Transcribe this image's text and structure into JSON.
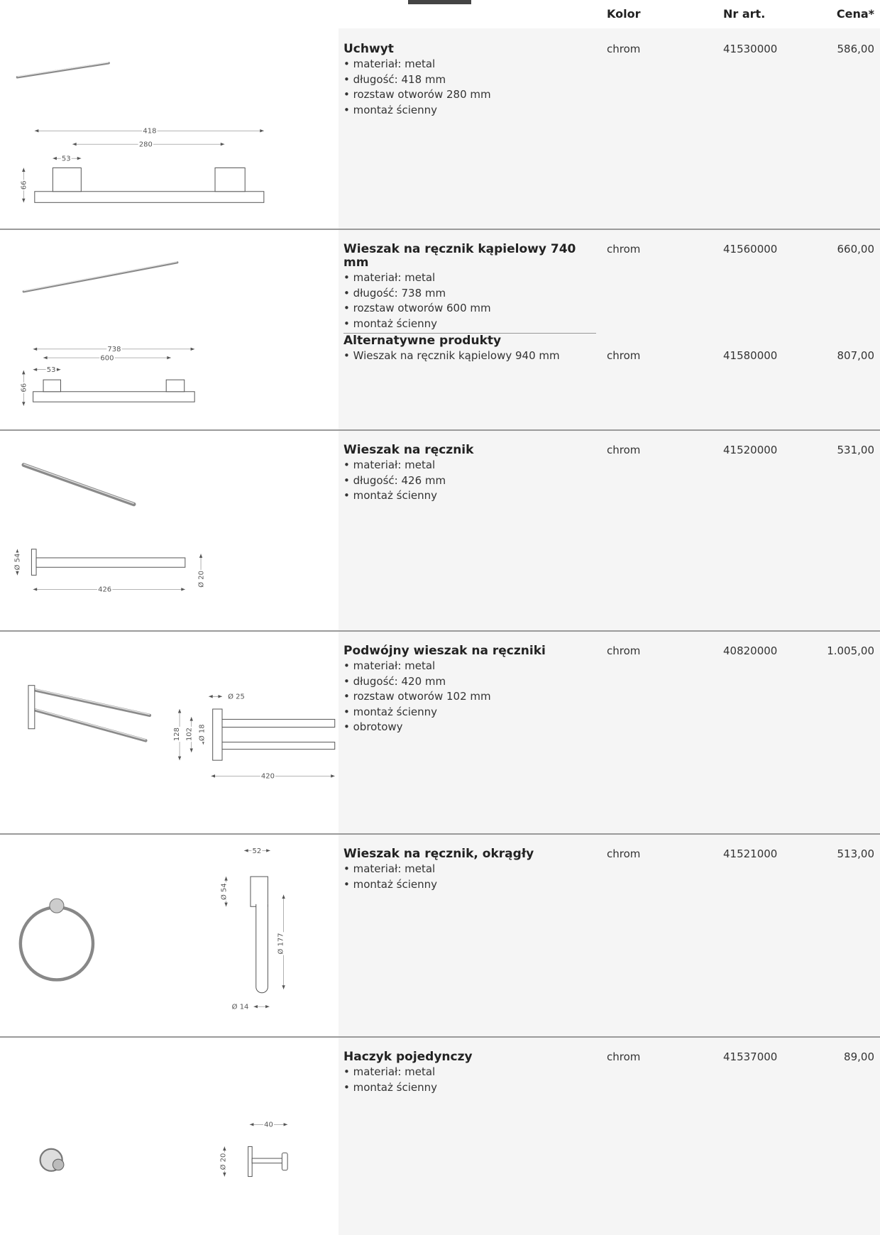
{
  "header": {
    "columns": [
      "Kolor",
      "Nr art.",
      "Cena*"
    ]
  },
  "products": [
    {
      "name": "Uchwyt",
      "features": [
        "• materiał: metal",
        "• długość: 418 mm",
        "• rozstaw otworów 280 mm",
        "• montaż ścienny"
      ],
      "color": "chrom",
      "article": "41530000",
      "price": "586,00",
      "dims": [
        "418",
        "280",
        "53",
        "66"
      ]
    },
    {
      "name": "Wieszak na ręcznik kąpielowy 740 mm",
      "features": [
        "• materiał: metal",
        "• długość: 738 mm",
        "• rozstaw otworów 600 mm",
        "• montaż ścienny"
      ],
      "color": "chrom",
      "article": "41560000",
      "price": "660,00",
      "dims": [
        "738",
        "600",
        "53",
        "66"
      ],
      "alternatives": {
        "title": "Alternatywne produkty",
        "items": [
          {
            "name": "• Wieszak na ręcznik kąpielowy 940 mm",
            "color": "chrom",
            "article": "41580000",
            "price": "807,00"
          }
        ]
      }
    },
    {
      "name": "Wieszak na ręcznik",
      "features": [
        "• materiał: metal",
        "• długość: 426 mm",
        "• montaż ścienny"
      ],
      "color": "chrom",
      "article": "41520000",
      "price": "531,00",
      "dims": [
        "Ø 54",
        "426",
        "Ø 20"
      ]
    },
    {
      "name": "Podwójny wieszak na ręczniki",
      "features": [
        "• materiał: metal",
        "• długość: 420 mm",
        "• rozstaw otworów 102 mm",
        "• montaż ścienny",
        "• obrotowy"
      ],
      "color": "chrom",
      "article": "40820000",
      "price": "1.005,00",
      "dims": [
        "Ø 25",
        "128",
        "102",
        "Ø 18",
        "420"
      ]
    },
    {
      "name": "Wieszak na ręcznik, okrągły",
      "features": [
        "• materiał: metal",
        "• montaż ścienny"
      ],
      "color": "chrom",
      "article": "41521000",
      "price": "513,00",
      "dims": [
        "52",
        "Ø 54",
        "Ø 177",
        "Ø 14"
      ]
    },
    {
      "name": "Haczyk pojedynczy",
      "features": [
        "• materiał: metal",
        "• montaż ścienny"
      ],
      "color": "chrom",
      "article": "41537000",
      "price": "89,00",
      "dims": [
        "40",
        "Ø 20"
      ]
    }
  ]
}
